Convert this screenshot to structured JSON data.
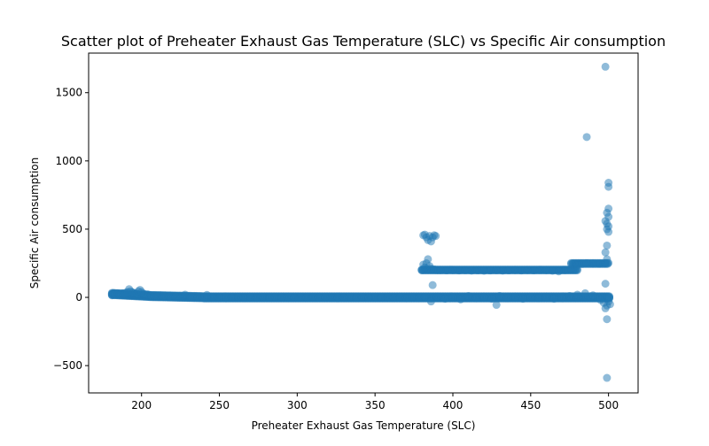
{
  "chart_data": {
    "type": "scatter",
    "title": "Scatter plot of Preheater Exhaust Gas Temperature (SLC) vs Specific Air consumption",
    "xlabel": "Preheater Exhaust Gas Temperature (SLC)",
    "ylabel": "Specific Air consumption",
    "xlim": [
      166,
      519
    ],
    "ylim": [
      -700,
      1790
    ],
    "xticks": [
      200,
      250,
      300,
      350,
      400,
      450,
      500
    ],
    "yticks": [
      -500,
      0,
      500,
      1000,
      1500
    ],
    "ytick_labels": [
      "−500",
      "0",
      "500",
      "1000",
      "1500"
    ],
    "grid": false,
    "marker_color": "#1f77b4",
    "marker_alpha": 0.5,
    "series": [
      {
        "points": [
          [
            181,
            15
          ],
          [
            182,
            25
          ],
          [
            183,
            22
          ],
          [
            184,
            18
          ],
          [
            185,
            28
          ],
          [
            186,
            20
          ],
          [
            187,
            24
          ],
          [
            188,
            30
          ],
          [
            189,
            26
          ],
          [
            190,
            35
          ],
          [
            191,
            40
          ],
          [
            192,
            60
          ],
          [
            193,
            45
          ],
          [
            194,
            38
          ],
          [
            195,
            32
          ],
          [
            196,
            30
          ],
          [
            197,
            28
          ],
          [
            198,
            45
          ],
          [
            199,
            55
          ],
          [
            200,
            40
          ],
          [
            201,
            28
          ],
          [
            202,
            25
          ],
          [
            204,
            22
          ],
          [
            206,
            15
          ],
          [
            208,
            12
          ],
          [
            210,
            10
          ],
          [
            214,
            8
          ],
          [
            218,
            6
          ],
          [
            222,
            5
          ],
          [
            226,
            4
          ],
          [
            228,
            20
          ],
          [
            232,
            3
          ],
          [
            236,
            2
          ],
          [
            240,
            -5
          ],
          [
            242,
            18
          ],
          [
            246,
            0
          ],
          [
            250,
            -3
          ],
          [
            254,
            2
          ],
          [
            258,
            -2
          ],
          [
            262,
            1
          ],
          [
            266,
            -4
          ],
          [
            270,
            2
          ],
          [
            274,
            -3
          ],
          [
            278,
            1
          ],
          [
            282,
            -2
          ],
          [
            286,
            3
          ],
          [
            290,
            -1
          ],
          [
            294,
            2
          ],
          [
            298,
            -3
          ],
          [
            302,
            1
          ],
          [
            306,
            -2
          ],
          [
            310,
            3
          ],
          [
            314,
            -1
          ],
          [
            318,
            2
          ],
          [
            322,
            -3
          ],
          [
            326,
            1
          ],
          [
            330,
            -2
          ],
          [
            334,
            3
          ],
          [
            338,
            -1
          ],
          [
            342,
            2
          ],
          [
            346,
            -3
          ],
          [
            350,
            1
          ],
          [
            354,
            -2
          ],
          [
            358,
            3
          ],
          [
            362,
            -4
          ],
          [
            366,
            2
          ],
          [
            370,
            -5
          ],
          [
            374,
            3
          ],
          [
            378,
            -4
          ],
          [
            382,
            2
          ],
          [
            380,
            200
          ],
          [
            381,
            240
          ],
          [
            382,
            220
          ],
          [
            383,
            250
          ],
          [
            384,
            280
          ],
          [
            385,
            230
          ],
          [
            386,
            210
          ],
          [
            388,
            205
          ],
          [
            390,
            200
          ],
          [
            381,
            455
          ],
          [
            382,
            460
          ],
          [
            383,
            440
          ],
          [
            384,
            420
          ],
          [
            385,
            450
          ],
          [
            386,
            410
          ],
          [
            387,
            440
          ],
          [
            388,
            455
          ],
          [
            389,
            450
          ],
          [
            387,
            90
          ],
          [
            386,
            -30
          ],
          [
            392,
            200
          ],
          [
            396,
            198
          ],
          [
            400,
            200
          ],
          [
            404,
            197
          ],
          [
            408,
            199
          ],
          [
            412,
            196
          ],
          [
            416,
            198
          ],
          [
            420,
            195
          ],
          [
            424,
            197
          ],
          [
            428,
            199
          ],
          [
            432,
            196
          ],
          [
            436,
            198
          ],
          [
            440,
            200
          ],
          [
            444,
            197
          ],
          [
            448,
            200
          ],
          [
            452,
            198
          ],
          [
            456,
            201
          ],
          [
            460,
            199
          ],
          [
            464,
            195
          ],
          [
            468,
            190
          ],
          [
            472,
            200
          ],
          [
            476,
            210
          ],
          [
            480,
            235
          ],
          [
            483,
            245
          ],
          [
            486,
            250
          ],
          [
            490,
            248
          ],
          [
            494,
            247
          ],
          [
            498,
            250
          ],
          [
            500,
            252
          ],
          [
            390,
            5
          ],
          [
            395,
            -10
          ],
          [
            400,
            0
          ],
          [
            405,
            -15
          ],
          [
            410,
            10
          ],
          [
            415,
            -5
          ],
          [
            420,
            5
          ],
          [
            425,
            -10
          ],
          [
            428,
            -55
          ],
          [
            430,
            10
          ],
          [
            435,
            -5
          ],
          [
            440,
            5
          ],
          [
            445,
            -10
          ],
          [
            450,
            0
          ],
          [
            455,
            -5
          ],
          [
            460,
            5
          ],
          [
            465,
            -10
          ],
          [
            470,
            0
          ],
          [
            475,
            10
          ],
          [
            480,
            20
          ],
          [
            485,
            30
          ],
          [
            490,
            15
          ],
          [
            495,
            -20
          ],
          [
            497,
            -40
          ],
          [
            498,
            -80
          ],
          [
            499,
            -60
          ],
          [
            500,
            -30
          ],
          [
            501,
            -50
          ],
          [
            499,
            -160
          ],
          [
            499,
            -590
          ],
          [
            498,
            100
          ],
          [
            498,
            330
          ],
          [
            499,
            280
          ],
          [
            499,
            380
          ],
          [
            500,
            480
          ],
          [
            499,
            500
          ],
          [
            500,
            520
          ],
          [
            499,
            540
          ],
          [
            498,
            560
          ],
          [
            500,
            590
          ],
          [
            499,
            620
          ],
          [
            500,
            650
          ],
          [
            500,
            810
          ],
          [
            500,
            840
          ],
          [
            486,
            1175
          ],
          [
            498,
            1690
          ]
        ]
      }
    ]
  }
}
